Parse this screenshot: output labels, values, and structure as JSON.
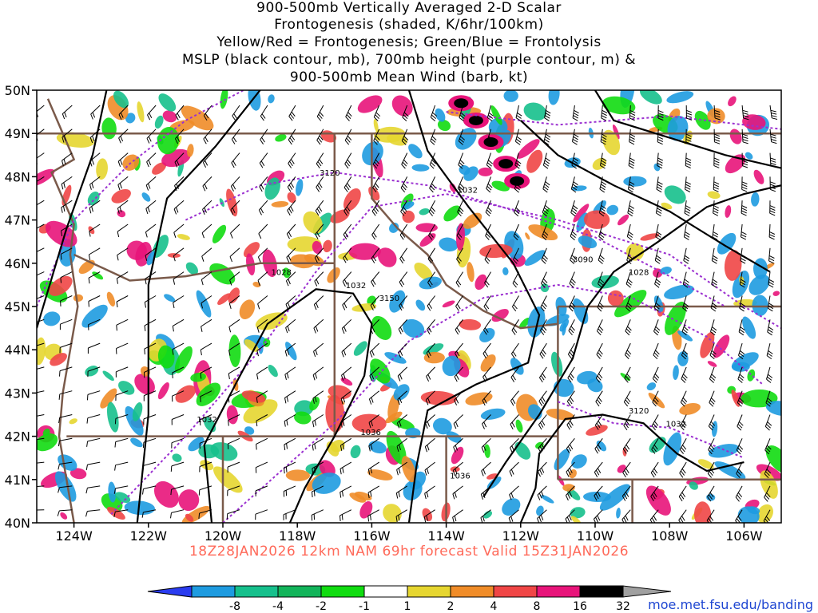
{
  "title": {
    "line1": "900-500mb Vertically Averaged 2-D Scalar",
    "line2": "Frontogenesis (shaded, K/6hr/100km)",
    "line3": "Yellow/Red = Frontogenesis;  Green/Blue = Frontolysis",
    "line4": "MSLP (black contour, mb), 700mb height (purple contour, m) &",
    "line5": "900-500mb Mean Wind (barb, kt)"
  },
  "valid_line": "18Z28JAN2026 12km NAM 69hr forecast Valid 15Z31JAN2026",
  "credit": "moe.met.fsu.edu/banding",
  "map": {
    "lon_range": [
      -125,
      -105
    ],
    "lat_range": [
      40,
      50
    ],
    "lat_labels": [
      "50N",
      "49N",
      "48N",
      "47N",
      "46N",
      "45N",
      "44N",
      "43N",
      "42N",
      "41N",
      "40N"
    ],
    "lon_labels": [
      "124W",
      "122W",
      "120W",
      "118W",
      "116W",
      "114W",
      "112W",
      "110W",
      "108W",
      "106W"
    ],
    "mslp_labels": [
      "1032",
      "1028",
      "1032",
      "1028",
      "1032",
      "1036",
      "1032",
      "1036"
    ],
    "height_labels": [
      "3120",
      "3150",
      "3090",
      "3120"
    ],
    "colors": {
      "mslp": "#000000",
      "height": "#9b30d0",
      "border": "#7a5a4a"
    }
  },
  "colorbar": {
    "labels": [
      "-8",
      "-4",
      "-2",
      "-1",
      "1",
      "2",
      "4",
      "8",
      "16",
      "32"
    ],
    "colors": [
      "#2a3cf0",
      "#1e9be0",
      "#16c08c",
      "#12b45a",
      "#11dc11",
      "#ffffff",
      "#e6d630",
      "#f08c28",
      "#f04646",
      "#e8147a",
      "#000000",
      "#a0a0a0"
    ]
  }
}
